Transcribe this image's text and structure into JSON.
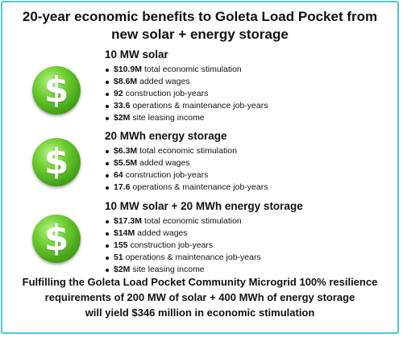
{
  "title": {
    "line1": "20-year economic benefits to Goleta Load Pocket from",
    "line2": "new solar + energy storage"
  },
  "sections": [
    {
      "heading": "10 MW solar",
      "items": [
        {
          "value": "$10.9M",
          "text": " total economic stimulation"
        },
        {
          "value": "$8.6M",
          "text": " added wages"
        },
        {
          "value": "92",
          "text": " construction job-years"
        },
        {
          "value": "33.6",
          "text": " operations & maintenance job-years"
        },
        {
          "value": "$2M",
          "text": " site leasing income"
        }
      ]
    },
    {
      "heading": "20 MWh energy storage",
      "items": [
        {
          "value": "$6.3M",
          "text": " total economic stimulation"
        },
        {
          "value": "$5.5M",
          "text": " added wages"
        },
        {
          "value": "64",
          "text": " construction job-years"
        },
        {
          "value": "17.6",
          "text": " operations & maintenance job-years"
        }
      ]
    },
    {
      "heading": "10 MW solar + 20 MWh energy storage",
      "items": [
        {
          "value": "$17.3M",
          "text": " total economic stimulation"
        },
        {
          "value": "$14M",
          "text": " added wages"
        },
        {
          "value": "155",
          "text": " construction job-years"
        },
        {
          "value": "51",
          "text": " operations & maintenance job-years"
        },
        {
          "value": "$2M",
          "text": " site leasing income"
        }
      ]
    }
  ],
  "icon_glyph": "$",
  "icon_name": "dollar-coin-icon",
  "colors": {
    "border": "#4fc8d8",
    "coin": "#5cbf28"
  },
  "footer": {
    "line1": "Fulfilling the Goleta Load Pocket Community Microgrid 100% resilience",
    "line2": "requirements of 200 MW of solar + 400 MWh of energy storage",
    "line3": "will yield $346 million in economic stimulation"
  }
}
